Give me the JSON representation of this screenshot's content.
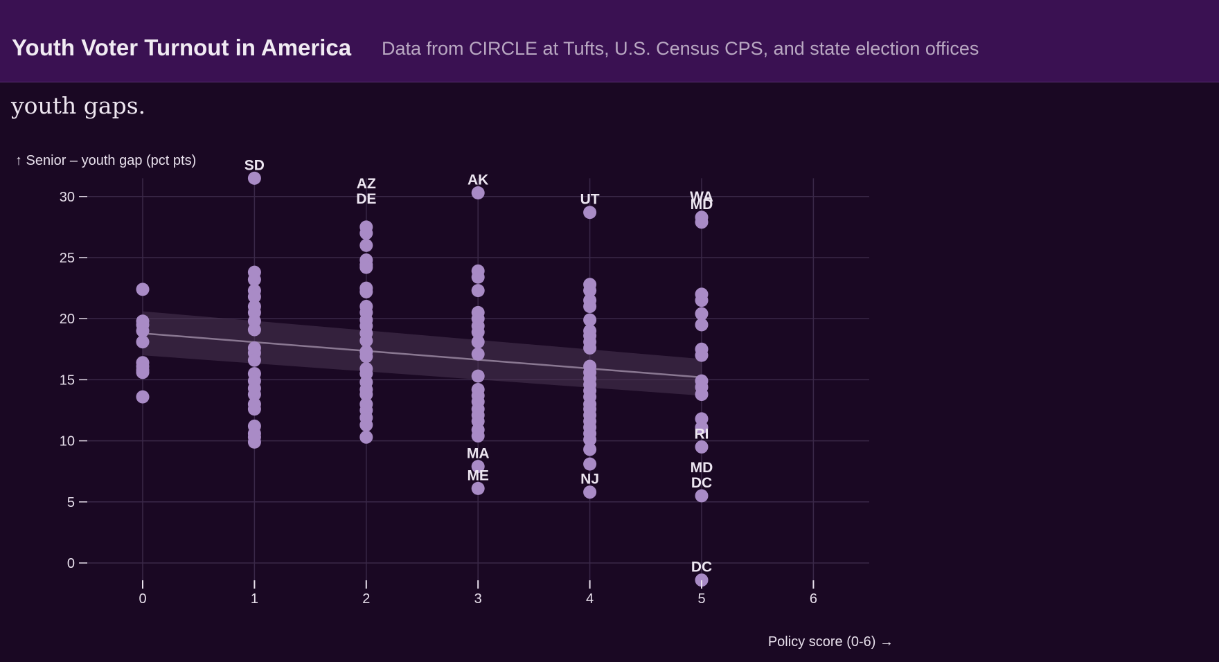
{
  "header": {
    "title": "Youth Voter Turnout in America",
    "subtitle": "Data from CIRCLE at Tufts, U.S. Census CPS, and state election offices"
  },
  "intro": {
    "text": "States with more pro-voter registration policies tend to have slightly smaller senior-youth gaps."
  },
  "colors": {
    "background": "#1a0823",
    "header": "#3a1152",
    "point": "#a98bc6",
    "trend_line": "#8a7892",
    "band": "#4a3654",
    "grid": "#3a2848"
  },
  "chart_data": {
    "type": "scatter",
    "xlabel": "Policy score (0-6) →",
    "ylabel": "↑ Senior – youth gap (pct pts)",
    "xlim": [
      -1.0,
      6.5
    ],
    "ylim": [
      -2,
      31.5
    ],
    "x_ticks": [
      0,
      1,
      2,
      3,
      4,
      5,
      6
    ],
    "y_ticks": [
      0,
      5,
      10,
      15,
      20,
      25,
      30
    ],
    "grid": true,
    "trend": {
      "x": [
        0,
        5
      ],
      "y": [
        18.8,
        15.2
      ],
      "band_lower": [
        17.0,
        13.7
      ],
      "band_upper": [
        20.6,
        16.7
      ]
    },
    "points": [
      {
        "x": 0,
        "y": 22.4
      },
      {
        "x": 0,
        "y": 19.8
      },
      {
        "x": 0,
        "y": 19.5
      },
      {
        "x": 0,
        "y": 19.0
      },
      {
        "x": 0,
        "y": 18.1
      },
      {
        "x": 0,
        "y": 16.4
      },
      {
        "x": 0,
        "y": 16.1
      },
      {
        "x": 0,
        "y": 15.8
      },
      {
        "x": 0,
        "y": 15.6
      },
      {
        "x": 0,
        "y": 13.6
      },
      {
        "x": 1,
        "y": 31.5
      },
      {
        "x": 1,
        "y": 23.8
      },
      {
        "x": 1,
        "y": 23.2
      },
      {
        "x": 1,
        "y": 22.3
      },
      {
        "x": 1,
        "y": 21.8
      },
      {
        "x": 1,
        "y": 21.0
      },
      {
        "x": 1,
        "y": 20.5
      },
      {
        "x": 1,
        "y": 19.8
      },
      {
        "x": 1,
        "y": 19.1
      },
      {
        "x": 1,
        "y": 17.6
      },
      {
        "x": 1,
        "y": 17.2
      },
      {
        "x": 1,
        "y": 16.6
      },
      {
        "x": 1,
        "y": 15.5
      },
      {
        "x": 1,
        "y": 14.9
      },
      {
        "x": 1,
        "y": 14.3
      },
      {
        "x": 1,
        "y": 13.8
      },
      {
        "x": 1,
        "y": 13.0
      },
      {
        "x": 1,
        "y": 12.6
      },
      {
        "x": 1,
        "y": 11.2
      },
      {
        "x": 1,
        "y": 10.6
      },
      {
        "x": 1,
        "y": 10.3
      },
      {
        "x": 1,
        "y": 9.9
      },
      {
        "x": 2,
        "y": 27.5
      },
      {
        "x": 2,
        "y": 27.0
      },
      {
        "x": 2,
        "y": 26.0
      },
      {
        "x": 2,
        "y": 24.8
      },
      {
        "x": 2,
        "y": 24.4
      },
      {
        "x": 2,
        "y": 24.2
      },
      {
        "x": 2,
        "y": 22.5
      },
      {
        "x": 2,
        "y": 22.2
      },
      {
        "x": 2,
        "y": 21.0
      },
      {
        "x": 2,
        "y": 20.5
      },
      {
        "x": 2,
        "y": 19.9
      },
      {
        "x": 2,
        "y": 19.4
      },
      {
        "x": 2,
        "y": 18.8
      },
      {
        "x": 2,
        "y": 18.2
      },
      {
        "x": 2,
        "y": 17.3
      },
      {
        "x": 2,
        "y": 16.9
      },
      {
        "x": 2,
        "y": 15.9
      },
      {
        "x": 2,
        "y": 15.5
      },
      {
        "x": 2,
        "y": 14.8
      },
      {
        "x": 2,
        "y": 14.2
      },
      {
        "x": 2,
        "y": 13.8
      },
      {
        "x": 2,
        "y": 13.0
      },
      {
        "x": 2,
        "y": 12.5
      },
      {
        "x": 2,
        "y": 11.9
      },
      {
        "x": 2,
        "y": 11.3
      },
      {
        "x": 2,
        "y": 10.3
      },
      {
        "x": 3,
        "y": 30.3
      },
      {
        "x": 3,
        "y": 23.9
      },
      {
        "x": 3,
        "y": 23.4
      },
      {
        "x": 3,
        "y": 22.3
      },
      {
        "x": 3,
        "y": 20.5
      },
      {
        "x": 3,
        "y": 20.0
      },
      {
        "x": 3,
        "y": 19.4
      },
      {
        "x": 3,
        "y": 18.9
      },
      {
        "x": 3,
        "y": 18.1
      },
      {
        "x": 3,
        "y": 17.1
      },
      {
        "x": 3,
        "y": 15.3
      },
      {
        "x": 3,
        "y": 14.2
      },
      {
        "x": 3,
        "y": 13.7
      },
      {
        "x": 3,
        "y": 13.2
      },
      {
        "x": 3,
        "y": 12.6
      },
      {
        "x": 3,
        "y": 12.1
      },
      {
        "x": 3,
        "y": 11.6
      },
      {
        "x": 3,
        "y": 10.9
      },
      {
        "x": 3,
        "y": 10.4
      },
      {
        "x": 3,
        "y": 7.9
      },
      {
        "x": 3,
        "y": 6.1
      },
      {
        "x": 4,
        "y": 28.7
      },
      {
        "x": 4,
        "y": 22.8
      },
      {
        "x": 4,
        "y": 22.3
      },
      {
        "x": 4,
        "y": 21.5
      },
      {
        "x": 4,
        "y": 21.0
      },
      {
        "x": 4,
        "y": 19.9
      },
      {
        "x": 4,
        "y": 19.0
      },
      {
        "x": 4,
        "y": 18.6
      },
      {
        "x": 4,
        "y": 18.1
      },
      {
        "x": 4,
        "y": 17.6
      },
      {
        "x": 4,
        "y": 16.1
      },
      {
        "x": 4,
        "y": 15.6
      },
      {
        "x": 4,
        "y": 15.1
      },
      {
        "x": 4,
        "y": 14.6
      },
      {
        "x": 4,
        "y": 14.1
      },
      {
        "x": 4,
        "y": 13.6
      },
      {
        "x": 4,
        "y": 13.0
      },
      {
        "x": 4,
        "y": 12.6
      },
      {
        "x": 4,
        "y": 12.1
      },
      {
        "x": 4,
        "y": 11.6
      },
      {
        "x": 4,
        "y": 11.1
      },
      {
        "x": 4,
        "y": 10.6
      },
      {
        "x": 4,
        "y": 10.1
      },
      {
        "x": 4,
        "y": 9.3
      },
      {
        "x": 4,
        "y": 8.1
      },
      {
        "x": 4,
        "y": 5.8
      },
      {
        "x": 5,
        "y": 28.3
      },
      {
        "x": 5,
        "y": 27.9
      },
      {
        "x": 5,
        "y": 22.0
      },
      {
        "x": 5,
        "y": 21.5
      },
      {
        "x": 5,
        "y": 20.4
      },
      {
        "x": 5,
        "y": 19.5
      },
      {
        "x": 5,
        "y": 17.5
      },
      {
        "x": 5,
        "y": 17.0
      },
      {
        "x": 5,
        "y": 14.9
      },
      {
        "x": 5,
        "y": 14.4
      },
      {
        "x": 5,
        "y": 13.8
      },
      {
        "x": 5,
        "y": 11.8
      },
      {
        "x": 5,
        "y": 11.1
      },
      {
        "x": 5,
        "y": 9.5
      },
      {
        "x": 5,
        "y": 5.5
      },
      {
        "x": 5,
        "y": -1.4
      }
    ],
    "annotations": [
      {
        "text": "SD",
        "x": 1,
        "y": 31.5
      },
      {
        "text": "AZ",
        "x": 2,
        "y": 27.5,
        "offset": -2
      },
      {
        "text": "DE",
        "x": 2,
        "y": 27.5,
        "offset": -1
      },
      {
        "text": "AK",
        "x": 3,
        "y": 30.3
      },
      {
        "text": "MA",
        "x": 3,
        "y": 7.9
      },
      {
        "text": "ME",
        "x": 3,
        "y": 6.1
      },
      {
        "text": "NJ",
        "x": 4,
        "y": 5.8
      },
      {
        "text": "UT",
        "x": 4,
        "y": 28.7
      },
      {
        "text": "MD",
        "x": 5,
        "y": 28.3
      },
      {
        "text": "WA",
        "x": 5,
        "y": 28.3,
        "offset": -0.5
      },
      {
        "text": "RI",
        "x": 5,
        "y": 9.5
      },
      {
        "text": "DC",
        "x": 5,
        "y": 5.5
      },
      {
        "text": "MD",
        "x": 5,
        "y": 5.5,
        "offset": -1
      },
      {
        "text": "DC",
        "x": 5,
        "y": -1.4
      }
    ]
  }
}
